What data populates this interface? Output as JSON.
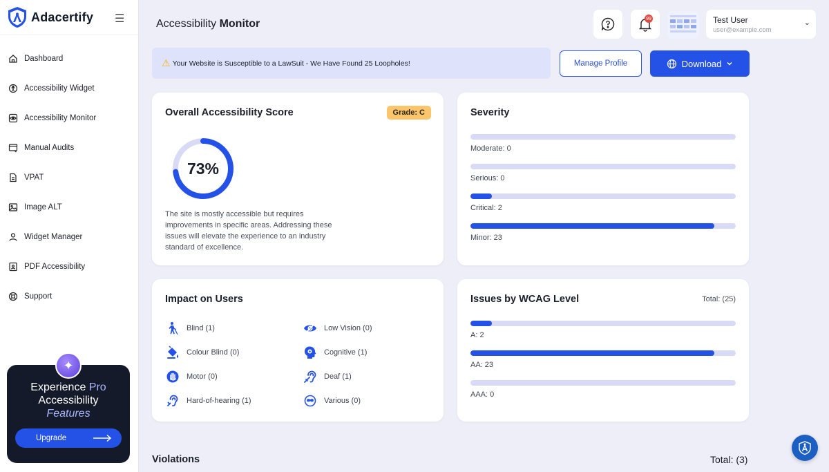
{
  "app": {
    "name": "Adacertify",
    "menu_icon": "hamburger-icon"
  },
  "sidebar": {
    "items": [
      {
        "label": "Dashboard",
        "icon": "home-icon"
      },
      {
        "label": "Accessibility Widget",
        "icon": "accessibility-icon"
      },
      {
        "label": "Accessibility Monitor",
        "icon": "eye-monitor-icon"
      },
      {
        "label": "Manual Audits",
        "icon": "window-audit-icon"
      },
      {
        "label": "VPAT",
        "icon": "document-icon"
      },
      {
        "label": "Image ALT",
        "icon": "image-icon"
      },
      {
        "label": "Widget Manager",
        "icon": "user-manager-icon"
      },
      {
        "label": "PDF Accessibility",
        "icon": "pdf-icon"
      },
      {
        "label": "Support",
        "icon": "lifebuoy-icon"
      }
    ],
    "promo": {
      "line1_prefix": "Experience ",
      "line1_highlight": "Pro",
      "line2": "Accessibility",
      "line3": "Features",
      "button_label": "Upgrade"
    }
  },
  "header": {
    "title_prefix": "Accessibility ",
    "title_bold": "Monitor",
    "notification_count": "99",
    "user": {
      "name": "Test User",
      "email": "user@example.com"
    }
  },
  "alert": {
    "icon": "warning-icon",
    "text": "Your Website is Susceptible to a LawSuit - We Have Found 25 Loopholes!"
  },
  "actions": {
    "manage_profile": "Manage Profile",
    "download": "Download"
  },
  "score": {
    "title": "Overall Accessibility Score",
    "grade": "Grade: C",
    "percent": 73,
    "percent_label": "73%",
    "description": "The site is mostly accessible but requires improvements in specific areas. Addressing these issues will elevate the experience to an industry standard of excellence."
  },
  "severity": {
    "title": "Severity",
    "items": [
      {
        "label": "Moderate: 0",
        "value": 0
      },
      {
        "label": "Serious: 0",
        "value": 0
      },
      {
        "label": "Critical: 2",
        "value": 2
      },
      {
        "label": "Minor: 23",
        "value": 23
      }
    ],
    "max": 25
  },
  "impact": {
    "title": "Impact on Users",
    "items": [
      {
        "label": "Blind (1)",
        "icon": "blind-person-icon"
      },
      {
        "label": "Low Vision (0)",
        "icon": "low-vision-eye-icon"
      },
      {
        "label": "Colour Blind (0)",
        "icon": "paint-bucket-icon"
      },
      {
        "label": "Cognitive (1)",
        "icon": "brain-head-icon"
      },
      {
        "label": "Motor (0)",
        "icon": "motor-hand-icon"
      },
      {
        "label": "Deaf (1)",
        "icon": "deaf-ear-icon"
      },
      {
        "label": "Hard-of-hearing (1)",
        "icon": "hearing-icon"
      },
      {
        "label": "Various (0)",
        "icon": "various-icon"
      }
    ]
  },
  "wcag": {
    "title": "Issues by WCAG Level",
    "total_label": "Total: (25)",
    "items": [
      {
        "label": "A: 2",
        "value": 2
      },
      {
        "label": "AA: 23",
        "value": 23
      },
      {
        "label": "AAA: 0",
        "value": 0
      }
    ],
    "max": 25
  },
  "violations": {
    "title": "Violations",
    "total_label": "Total: (3)"
  },
  "colors": {
    "accent": "#2451e6",
    "grade_badge": "#fbc66b",
    "track": "#d9dbf6",
    "alert_bg": "#dfe2fb"
  }
}
